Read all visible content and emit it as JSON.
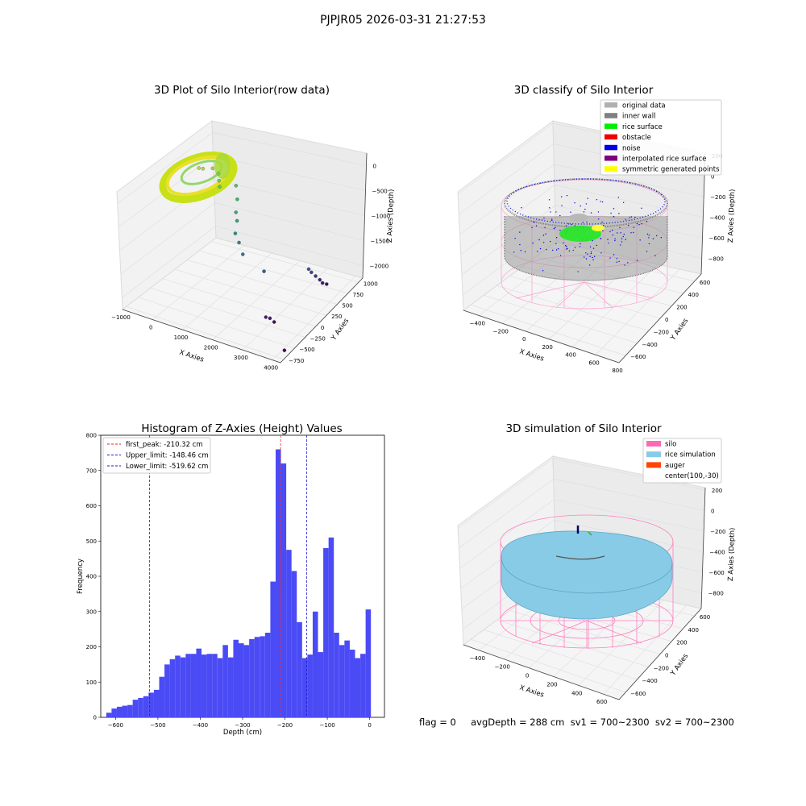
{
  "figure": {
    "suptitle": "PJPJR05 2026-03-31 21:27:53",
    "status_line": "flag = 0     avgDepth = 288 cm  sv1 = 700~2300  sv2 = 700~2300"
  },
  "colors": {
    "hist_bar": "#4b4bf5",
    "first_peak_line": "#e8202a",
    "limit_line": "#1a1acc",
    "silo_pink": "#ff69b4",
    "rice_blue": "#87cbe6",
    "auger": "#ff4500",
    "inner_wall": "#808080",
    "noise": "#0000ee",
    "rice_surface": "#00ee00"
  },
  "chart_data": [
    {
      "type": "scatter",
      "panel": "top-left",
      "projection": "3d",
      "title": "3D Plot of Silo Interior(row data)",
      "xlabel": "X Axies",
      "ylabel": "Y Axies",
      "zlabel": "Z Axies (Depth)",
      "x_ticks": [
        "−1000",
        "0",
        "1000",
        "2000",
        "3000",
        "4000"
      ],
      "y_ticks": [
        "−750",
        "−500",
        "−250",
        "0",
        "250",
        "500",
        "750",
        "1000"
      ],
      "z_ticks": [
        "−2000",
        "−1500",
        "−1000",
        "−500",
        "0"
      ],
      "xlim": [
        -1000,
        4200
      ],
      "ylim": [
        -800,
        1050
      ],
      "zlim": [
        -2300,
        50
      ],
      "colormap": "viridis",
      "outlier_points": [
        {
          "x": -200,
          "y": 300,
          "z": -220
        },
        {
          "x": -150,
          "y": 350,
          "z": -260
        },
        {
          "x": 0,
          "y": 450,
          "z": -300
        },
        {
          "x": 100,
          "y": 500,
          "z": -420
        },
        {
          "x": 200,
          "y": 450,
          "z": -500
        },
        {
          "x": 300,
          "y": 400,
          "z": -560
        },
        {
          "x": 500,
          "y": 600,
          "z": -650
        },
        {
          "x": 700,
          "y": 500,
          "z": -800
        },
        {
          "x": 900,
          "y": 350,
          "z": -900
        },
        {
          "x": 1100,
          "y": 250,
          "z": -950
        },
        {
          "x": 1200,
          "y": 150,
          "z": -1100
        },
        {
          "x": 1400,
          "y": 100,
          "z": -1200
        },
        {
          "x": 1600,
          "y": 50,
          "z": -1350
        },
        {
          "x": 2200,
          "y": 100,
          "z": -1600
        },
        {
          "x": 3000,
          "y": 500,
          "z": -1700
        },
        {
          "x": 3000,
          "y": 550,
          "z": -1800
        },
        {
          "x": 3050,
          "y": 600,
          "z": -1900
        },
        {
          "x": 3100,
          "y": 650,
          "z": -2000
        },
        {
          "x": 3100,
          "y": 700,
          "z": -2100
        },
        {
          "x": 3150,
          "y": 750,
          "z": -2150
        },
        {
          "x": 2900,
          "y": -300,
          "z": -2050
        },
        {
          "x": 2950,
          "y": -250,
          "z": -2100
        },
        {
          "x": 3000,
          "y": -200,
          "z": -2200
        },
        {
          "x": 4000,
          "y": -600,
          "z": -2250
        }
      ]
    },
    {
      "type": "scatter",
      "panel": "top-right",
      "projection": "3d",
      "title": "3D classify of Silo Interior",
      "xlabel": "X Axies",
      "ylabel": "Y Axies",
      "zlabel": "Z Axies (Depth)",
      "x_ticks": [
        "−400",
        "−200",
        "0",
        "200",
        "400",
        "600",
        "800"
      ],
      "y_ticks": [
        "−600",
        "−400",
        "−200",
        "0",
        "200",
        "400",
        "600"
      ],
      "z_ticks": [
        "−800",
        "−600",
        "−400",
        "−200",
        "0",
        "200"
      ],
      "xlim": [
        -500,
        800
      ],
      "ylim": [
        -700,
        700
      ],
      "zlim": [
        -950,
        300
      ],
      "legend_position": "top-right",
      "legend": [
        {
          "label": "original data",
          "color": "#b0b0b0"
        },
        {
          "label": "inner wall",
          "color": "#808080"
        },
        {
          "label": "rice surface",
          "color": "#00ee00"
        },
        {
          "label": "obstacle",
          "color": "#ee0000"
        },
        {
          "label": "noise",
          "color": "#0000ee"
        },
        {
          "label": "interpolated rice surface",
          "color": "#800080"
        },
        {
          "label": "symmetric generated points",
          "color": "#ffff00"
        }
      ]
    },
    {
      "type": "bar",
      "panel": "bottom-left",
      "title": "Histogram of Z-Axies (Height) Values",
      "xlabel": "Depth (cm)",
      "ylabel": "Frequency",
      "xlim": [
        -635,
        35
      ],
      "ylim": [
        0,
        800
      ],
      "x_ticks": [
        "−600",
        "−500",
        "−400",
        "−300",
        "−200",
        "−100",
        "0"
      ],
      "y_ticks": [
        "0",
        "100",
        "200",
        "300",
        "400",
        "500",
        "600",
        "700",
        "800"
      ],
      "bin_start": -622,
      "bin_width": 12.5,
      "values": [
        13,
        25,
        30,
        33,
        35,
        50,
        55,
        60,
        70,
        78,
        115,
        150,
        165,
        175,
        170,
        180,
        180,
        195,
        178,
        180,
        180,
        168,
        205,
        170,
        220,
        210,
        205,
        222,
        228,
        230,
        240,
        385,
        760,
        720,
        475,
        415,
        270,
        168,
        178,
        300,
        185,
        480,
        510,
        240,
        205,
        218,
        192,
        168,
        180,
        306
      ],
      "lines": [
        {
          "label": "first_peak: -210.32 cm",
          "x": -210.32,
          "color": "#e8202a"
        },
        {
          "label": "Upper_limit: -148.46 cm",
          "x": -148.46,
          "color": "#1a1acc"
        },
        {
          "label": "Lower_limit: -519.62 cm",
          "x": -519.62,
          "color": "#1a1acc"
        }
      ],
      "legend_position": "top-left"
    },
    {
      "type": "scatter",
      "panel": "bottom-right",
      "projection": "3d",
      "title": "3D simulation of Silo Interior",
      "xlabel": "X Axies",
      "ylabel": "Y Axies",
      "zlabel": "Z Axies (Depth)",
      "x_ticks": [
        "−400",
        "−200",
        "0",
        "200",
        "400",
        "600"
      ],
      "y_ticks": [
        "−600",
        "−400",
        "−200",
        "0",
        "200",
        "400",
        "600"
      ],
      "z_ticks": [
        "−800",
        "−600",
        "−400",
        "−200",
        "0",
        "200"
      ],
      "xlim": [
        -500,
        700
      ],
      "ylim": [
        -700,
        700
      ],
      "zlim": [
        -950,
        300
      ],
      "legend_position": "top-right",
      "legend": [
        {
          "label": "silo",
          "color": "#ff69b4"
        },
        {
          "label": "rice simulation",
          "color": "#87cbe6"
        },
        {
          "label": "auger",
          "color": "#ff4500"
        },
        {
          "label": "center(100,-30)",
          "color": ""
        }
      ]
    }
  ]
}
